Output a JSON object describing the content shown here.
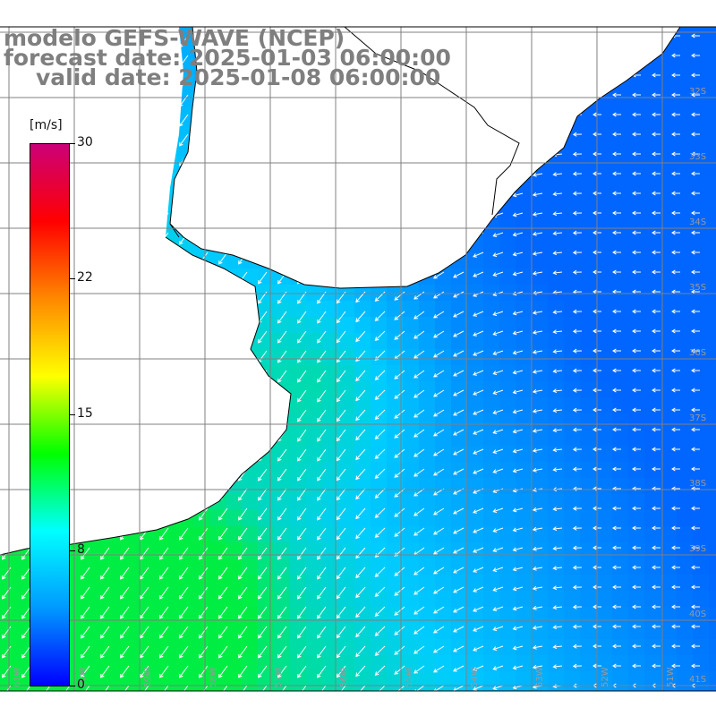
{
  "title": {
    "line1": "modelo GEFS-WAVE (NCEP)",
    "line2": "forecast date: 2025-01-03 06:00:00",
    "line3": "valid date: 2025-01-08 06:00:00"
  },
  "colorbar": {
    "unit": "[m/s]",
    "min": 0,
    "max": 30,
    "tick_labels": [
      "30",
      "22",
      "15",
      "8",
      "0"
    ],
    "tick_values": [
      30,
      22,
      15,
      8,
      0
    ],
    "colors": [
      "#0000ff",
      "#0099ff",
      "#00ffff",
      "#00ff00",
      "#ffff00",
      "#ff8800",
      "#ff0000",
      "#cc0077"
    ]
  },
  "map": {
    "lon_labels": [
      "61W",
      "60W",
      "59W",
      "58W",
      "57W",
      "56W",
      "55W",
      "54W",
      "53W",
      "52W",
      "51W"
    ],
    "lat_labels": [
      "32S",
      "33S",
      "34S",
      "35S",
      "36S",
      "37S",
      "38S",
      "39S",
      "40S",
      "41S"
    ],
    "land_color": "#ffffff",
    "grid_color": "#808080",
    "wind_field_colors": {
      "low": "#0066ff",
      "mid": "#00ccff",
      "high": "#00ee44"
    }
  }
}
